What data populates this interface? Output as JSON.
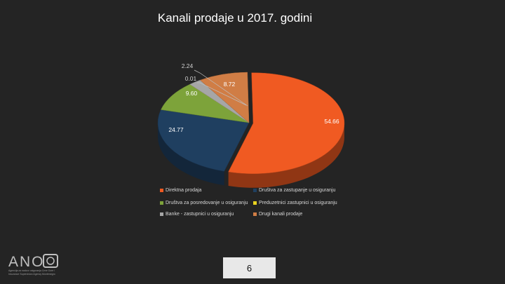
{
  "slide": {
    "title": "Kanali prodaje u 2017. godini",
    "page_number": "6"
  },
  "logo": {
    "text": "ANO",
    "subtitle": "Agencija za nadzor osiguranja Crne Gore / Insurance Supervision Agency Montenegro"
  },
  "chart_data": {
    "type": "pie",
    "title": "",
    "categories": [
      "Direktna prodaja",
      "Društva za zastupanje u osiguranju",
      "Društva za posredovanje u osiguranju",
      "Preduzetnici zastupnici u osiguranju",
      "Banke - zastupnici u osiguranju",
      "Drugi kanali prodaje"
    ],
    "values": [
      54.66,
      24.77,
      9.6,
      0.01,
      2.24,
      8.72
    ],
    "labels": [
      "54.66",
      "24.77",
      "9.60",
      "0.01",
      "2.24",
      "8.72"
    ],
    "colors": [
      "#F05A22",
      "#1F3F60",
      "#7DA33A",
      "#E8D21F",
      "#A6A6A6",
      "#D07D45"
    ],
    "legend_position": "bottom"
  }
}
